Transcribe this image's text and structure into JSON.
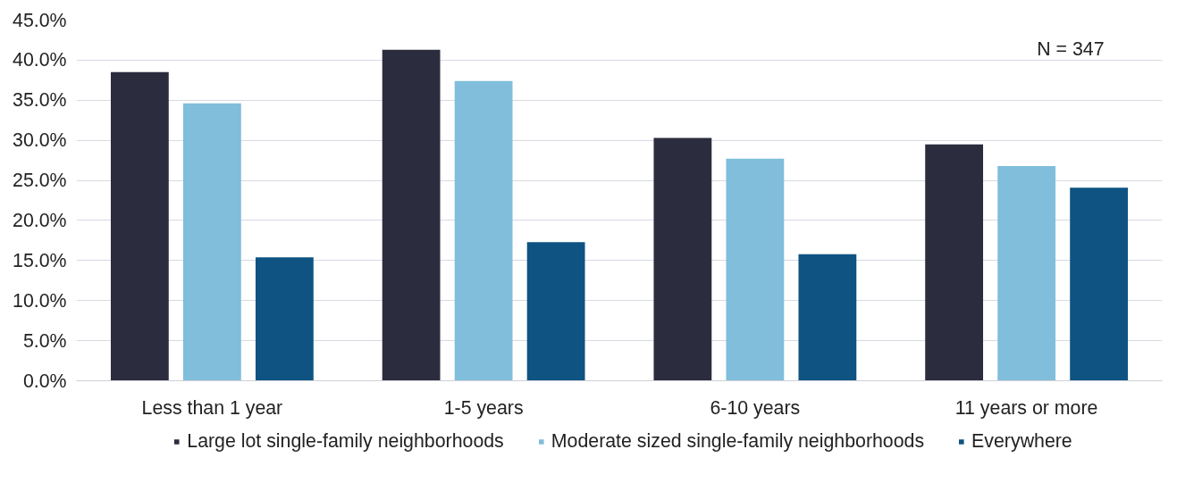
{
  "chart_data": {
    "type": "bar",
    "categories": [
      "Less than 1 year",
      "1-5 years",
      "6-10 years",
      "11 years or more"
    ],
    "series": [
      {
        "name": "Large lot single-family neighborhoods",
        "color": "#2b2d3e",
        "values": [
          38.5,
          41.3,
          30.3,
          29.5
        ]
      },
      {
        "name": "Moderate sized single-family neighborhoods",
        "color": "#80bedb",
        "values": [
          34.6,
          37.4,
          27.7,
          26.8
        ]
      },
      {
        "name": "Everywhere",
        "color": "#0e5382",
        "values": [
          15.4,
          17.3,
          15.8,
          24.1
        ]
      }
    ],
    "ylim": [
      0,
      45
    ],
    "yticks": [
      {
        "value": 0,
        "label": "0.0%"
      },
      {
        "value": 5,
        "label": "5.0%"
      },
      {
        "value": 10,
        "label": "10.0%"
      },
      {
        "value": 15,
        "label": "15.0%"
      },
      {
        "value": 20,
        "label": "20.0%"
      },
      {
        "value": 25,
        "label": "25.0%"
      },
      {
        "value": 30,
        "label": "30.0%"
      },
      {
        "value": 35,
        "label": "35.0%"
      },
      {
        "value": 40,
        "label": "40.0%"
      },
      {
        "value": 45,
        "label": "45.0%"
      }
    ],
    "grid": "y",
    "legend": "bottom",
    "annotations": [
      "N = 347"
    ]
  }
}
